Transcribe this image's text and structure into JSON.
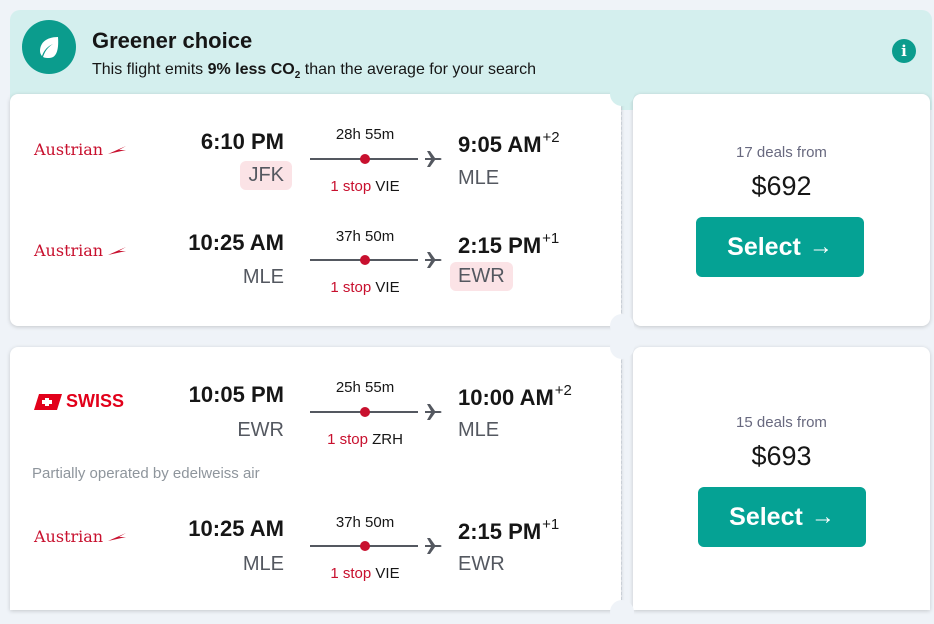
{
  "banner": {
    "title": "Greener choice",
    "text_prefix": "This flight emits ",
    "text_bold": "9% less CO",
    "text_sub": "2",
    "text_suffix": " than the average for your search",
    "info_icon": "i",
    "icon": "leaf-icon"
  },
  "results": [
    {
      "legs": [
        {
          "airline": "Austrian",
          "dep_time": "6:10 PM",
          "dep_code": "JFK",
          "duration": "28h 55m",
          "stops": "1 stop",
          "via": "VIE",
          "arr_time": "9:05 AM",
          "arr_offset": "+2",
          "arr_code": "MLE"
        },
        {
          "airline": "Austrian",
          "dep_time": "10:25 AM",
          "dep_code": "MLE",
          "duration": "37h 50m",
          "stops": "1 stop",
          "via": "VIE",
          "arr_time": "2:15 PM",
          "arr_offset": "+1",
          "arr_code": "EWR"
        }
      ],
      "deals": "17 deals from",
      "price": "$692",
      "select_label": "Select"
    },
    {
      "legs": [
        {
          "airline": "SWISS",
          "dep_time": "10:05 PM",
          "dep_code": "EWR",
          "duration": "25h 55m",
          "stops": "1 stop",
          "via": "ZRH",
          "arr_time": "10:00 AM",
          "arr_offset": "+2",
          "arr_code": "MLE",
          "note": "Partially operated by edelweiss air"
        },
        {
          "airline": "Austrian",
          "dep_time": "10:25 AM",
          "dep_code": "MLE",
          "duration": "37h 50m",
          "stops": "1 stop",
          "via": "VIE",
          "arr_time": "2:15 PM",
          "arr_offset": "+1",
          "arr_code": "EWR"
        }
      ],
      "deals": "15 deals from",
      "price": "$693",
      "select_label": "Select"
    }
  ],
  "colors": {
    "accent": "#05a294",
    "stop": "#c8102e",
    "highlight_code": "#fbe3e6",
    "banner_bg": "#d4efee"
  }
}
